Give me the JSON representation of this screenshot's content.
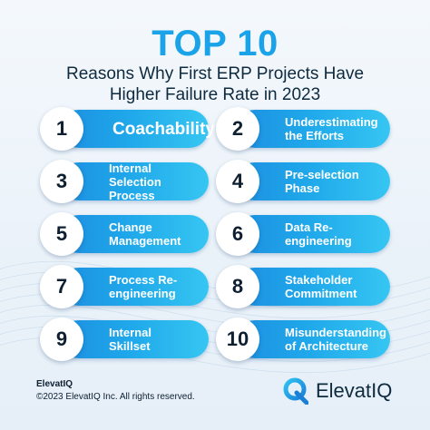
{
  "title": "TOP 10",
  "subtitle_line1": "Reasons Why First ERP Projects Have",
  "subtitle_line2": "Higher Failure Rate in 2023",
  "reasons": [
    {
      "number": "1",
      "label": "Coachability"
    },
    {
      "number": "2",
      "label": "Underestimating the Efforts"
    },
    {
      "number": "3",
      "label": "Internal Selection Process"
    },
    {
      "number": "4",
      "label": "Pre-selection Phase"
    },
    {
      "number": "5",
      "label": "Change Management"
    },
    {
      "number": "6",
      "label": "Data Re-engineering"
    },
    {
      "number": "7",
      "label": "Process Re-engineering"
    },
    {
      "number": "8",
      "label": "Stakeholder Commitment"
    },
    {
      "number": "9",
      "label": "Internal Skillset"
    },
    {
      "number": "10",
      "label": "Misunderstanding of Architecture"
    }
  ],
  "footer": {
    "brand": "ElevatIQ",
    "copyright": "©2023 ElevatIQ Inc. All rights reserved."
  },
  "logo": {
    "text": "ElevatIQ",
    "icon": "elevatiq-q-logo-icon"
  },
  "colors": {
    "accent": "#1aa3e8",
    "pill_start": "#1d8fe0",
    "pill_end": "#36c6f2",
    "dark_text": "#0e2a3f"
  }
}
